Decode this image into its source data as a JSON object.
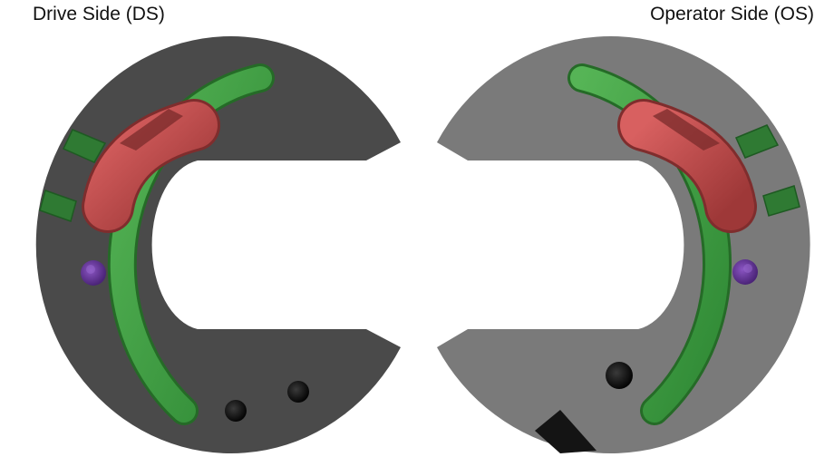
{
  "labels": {
    "drive_side": "Drive Side (DS)",
    "operator_side": "Operator Side (OS)"
  },
  "colors": {
    "ds_body": "#4a4a4a",
    "os_body": "#7a7a7a",
    "green_band": "#3f9a3f",
    "red_slot": "#c24a4a",
    "purple_hole": "#6a3a9a",
    "black_hole": "#111111"
  }
}
